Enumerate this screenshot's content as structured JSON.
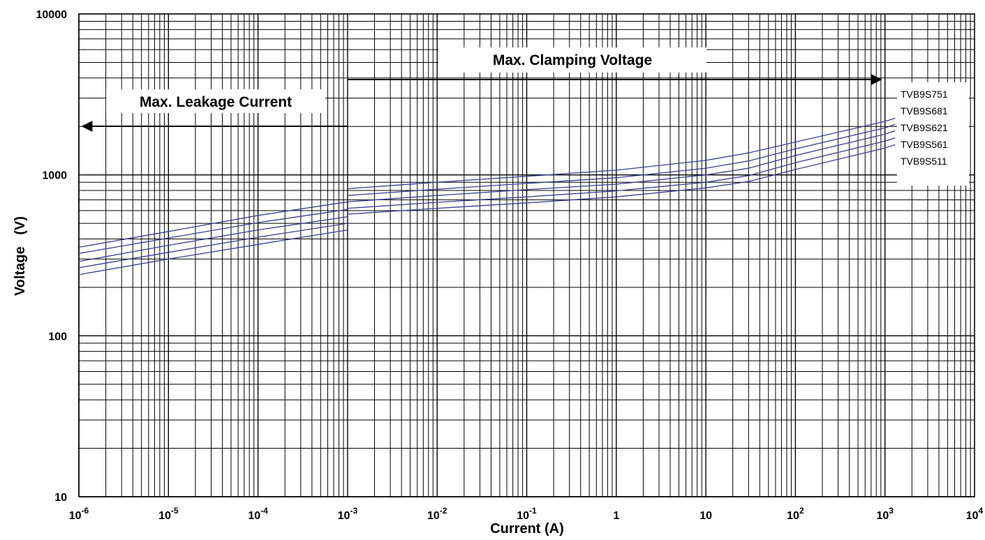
{
  "chart_data": {
    "type": "line",
    "xlabel": "Current (A)",
    "ylabel": "Voltage   (V)",
    "x_scale": "log",
    "y_scale": "log",
    "xlim": [
      1e-06,
      10000
    ],
    "ylim": [
      10,
      10000
    ],
    "grid": true,
    "x_ticks": [
      {
        "base": "10",
        "exp": "-6"
      },
      {
        "base": "10",
        "exp": "-5"
      },
      {
        "base": "10",
        "exp": "-4"
      },
      {
        "base": "10",
        "exp": "-3"
      },
      {
        "base": "10",
        "exp": "-2"
      },
      {
        "base": "10",
        "exp": "-1"
      },
      {
        "base": "1",
        "exp": ""
      },
      {
        "base": "10",
        "exp": ""
      },
      {
        "base": "10",
        "exp": "2"
      },
      {
        "base": "10",
        "exp": "3"
      },
      {
        "base": "10",
        "exp": "4"
      }
    ],
    "y_ticks": [
      "10",
      "100",
      "1000",
      "10000"
    ],
    "annotations": {
      "leakage": "Max. Leakage Current",
      "clamping": "Max. Clamping Voltage"
    },
    "line_color": "#3a3f8f",
    "leakage_series": [
      {
        "x": [
          1e-06,
          1e-05,
          0.0001,
          0.001
        ],
        "y": [
          355,
          445,
          560,
          680
        ]
      },
      {
        "x": [
          1e-06,
          1e-05,
          0.0001,
          0.001
        ],
        "y": [
          325,
          405,
          505,
          610
        ]
      },
      {
        "x": [
          1e-06,
          1e-05,
          0.0001,
          0.001
        ],
        "y": [
          290,
          365,
          455,
          550
        ]
      },
      {
        "x": [
          1e-06,
          1e-05,
          0.0001,
          0.001
        ],
        "y": [
          265,
          330,
          410,
          500
        ]
      },
      {
        "x": [
          1e-06,
          1e-05,
          0.0001,
          0.001
        ],
        "y": [
          240,
          300,
          370,
          455
        ]
      }
    ],
    "series": [
      {
        "name": "TVB9S751",
        "x": [
          0.001,
          0.01,
          0.1,
          1,
          10,
          30,
          100,
          1000,
          1300
        ],
        "y": [
          820,
          900,
          980,
          1070,
          1230,
          1370,
          1600,
          2150,
          2250
        ]
      },
      {
        "name": "TVB9S681",
        "x": [
          0.001,
          0.01,
          0.1,
          1,
          10,
          30,
          100,
          1000,
          1300
        ],
        "y": [
          745,
          815,
          885,
          960,
          1100,
          1220,
          1450,
          1960,
          2060
        ]
      },
      {
        "name": "TVB9S621",
        "x": [
          0.001,
          0.01,
          0.1,
          1,
          10,
          30,
          100,
          1000,
          1300
        ],
        "y": [
          680,
          745,
          810,
          875,
          1000,
          1100,
          1320,
          1790,
          1880
        ]
      },
      {
        "name": "TVB9S561",
        "x": [
          0.001,
          0.01,
          0.1,
          1,
          10,
          30,
          100,
          1000,
          1300
        ],
        "y": [
          620,
          675,
          730,
          795,
          900,
          990,
          1190,
          1620,
          1700
        ]
      },
      {
        "name": "TVB9S511",
        "x": [
          0.001,
          0.01,
          0.1,
          1,
          10,
          30,
          100,
          1000,
          1300
        ],
        "y": [
          570,
          620,
          670,
          730,
          830,
          910,
          1080,
          1470,
          1540
        ]
      }
    ]
  }
}
